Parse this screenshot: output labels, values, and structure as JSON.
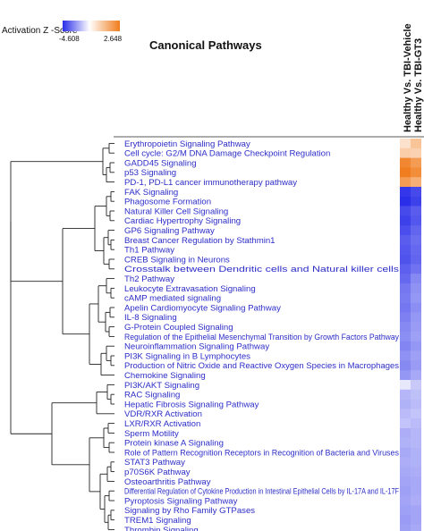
{
  "chart_data": {
    "type": "heatmap",
    "title": "Canonical Pathways",
    "legend": {
      "title": "Activation Z -Score",
      "min": -4.608,
      "max": 2.648,
      "min_label": "-4.608",
      "max_label": "2.648",
      "color_min": "#2a2ee8",
      "color_mid": "#ffffff",
      "color_max": "#f07c1c"
    },
    "columns": [
      "Healthy Vs. TBI-Vehicle",
      "Healthy Vs. TBI-GT3"
    ],
    "rows": [
      {
        "label": "Erythropoietin Signaling Pathway",
        "values": [
          0.6,
          1.2
        ]
      },
      {
        "label": "Cell cycle: G2/M DNA Damage Checkpoint Regulation",
        "values": [
          1.0,
          0.9
        ]
      },
      {
        "label": "GADD45 Signaling",
        "values": [
          2.4,
          2.0
        ]
      },
      {
        "label": "p53 Signaling",
        "values": [
          2.6,
          2.3
        ]
      },
      {
        "label": "PD-1, PD-L1 cancer immunotherapy pathway",
        "values": [
          2.0,
          1.6
        ]
      },
      {
        "label": "FAK Signaling",
        "values": [
          -4.4,
          -4.0
        ]
      },
      {
        "label": "Phagosome Formation",
        "values": [
          -4.6,
          -4.2
        ]
      },
      {
        "label": "Natural Killer Cell Signaling",
        "values": [
          -4.0,
          -3.6
        ]
      },
      {
        "label": "Cardiac Hypertrophy Signaling",
        "values": [
          -4.2,
          -3.7
        ]
      },
      {
        "label": "GP6 Signaling Pathway",
        "values": [
          -3.9,
          -3.4
        ]
      },
      {
        "label": "Breast Cancer Regulation by Stathmin1",
        "values": [
          -3.6,
          -3.2
        ]
      },
      {
        "label": "Th1 Pathway",
        "values": [
          -3.7,
          -3.3
        ]
      },
      {
        "label": "CREB Signaling in Neurons",
        "values": [
          -3.8,
          -3.4
        ]
      },
      {
        "label": "Crosstalk between Dendritic cells and Natural killer cells",
        "values": [
          -3.5,
          -3.1
        ]
      },
      {
        "label": "Th2 Pathway",
        "values": [
          -3.3,
          -2.6
        ]
      },
      {
        "label": "Leukocyte Extravasation Signaling",
        "values": [
          -3.0,
          -2.4
        ]
      },
      {
        "label": "cAMP mediated signaling",
        "values": [
          -2.9,
          -2.3
        ]
      },
      {
        "label": "Apelin Cardiomyocyte Signaling Pathway",
        "values": [
          -3.0,
          -2.5
        ]
      },
      {
        "label": "IL-8 Signaling",
        "values": [
          -2.8,
          -2.3
        ]
      },
      {
        "label": "G-Protein Coupled Signaling",
        "values": [
          -2.6,
          -2.2
        ]
      },
      {
        "label": "Regulation of the Epithelial Mesenchymal Transition by Growth Factors Pathway",
        "values": [
          -2.5,
          -2.1
        ]
      },
      {
        "label": "Neuroinflammation Signaling Pathway",
        "values": [
          -2.7,
          -2.3
        ]
      },
      {
        "label": "PI3K Signaling in B Lymphocytes",
        "values": [
          -2.4,
          -2.1
        ]
      },
      {
        "label": "Production of Nitric Oxide and Reactive Oxygen Species in Macrophages",
        "values": [
          -2.6,
          -2.2
        ]
      },
      {
        "label": "Chemokine Signaling",
        "values": [
          -2.3,
          -1.9
        ]
      },
      {
        "label": "PI3K/AKT Signaling",
        "values": [
          -0.5,
          -1.2
        ]
      },
      {
        "label": "RAC Signaling",
        "values": [
          -1.6,
          -1.4
        ]
      },
      {
        "label": "Hepatic Fibrosis Signaling Pathway",
        "values": [
          -1.7,
          -1.5
        ]
      },
      {
        "label": "VDR/RXR Activation",
        "values": [
          -1.5,
          -1.3
        ]
      },
      {
        "label": "LXR/RXR Activation",
        "values": [
          -1.3,
          -1.5
        ]
      },
      {
        "label": "Sperm Motility",
        "values": [
          -1.8,
          -1.6
        ]
      },
      {
        "label": "Protein kinase A Signaling",
        "values": [
          -1.7,
          -1.6
        ]
      },
      {
        "label": "Role of Pattern Recognition Receptors in Recognition of Bacteria and Viruses",
        "values": [
          -1.9,
          -1.7
        ]
      },
      {
        "label": "STAT3 Pathway",
        "values": [
          -1.8,
          -1.7
        ]
      },
      {
        "label": "p70S6K Pathway",
        "values": [
          -1.9,
          -1.8
        ]
      },
      {
        "label": "Osteoarthritis Pathway",
        "values": [
          -2.0,
          -1.9
        ]
      },
      {
        "label": "Differential Regulation of Cytokine Production in Intestinal Epithelial Cells by IL-17A and IL-17F",
        "values": [
          -2.1,
          -1.9
        ]
      },
      {
        "label": "Pyroptosis Signaling Pathway",
        "values": [
          -2.0,
          -1.8
        ]
      },
      {
        "label": "Signaling by Rho Family GTPases",
        "values": [
          -2.1,
          -2.0
        ]
      },
      {
        "label": "TREM1 Signaling",
        "values": [
          -2.2,
          -2.0
        ]
      },
      {
        "label": "Thrombin Signaling",
        "values": [
          -2.1,
          -1.9
        ]
      }
    ]
  }
}
